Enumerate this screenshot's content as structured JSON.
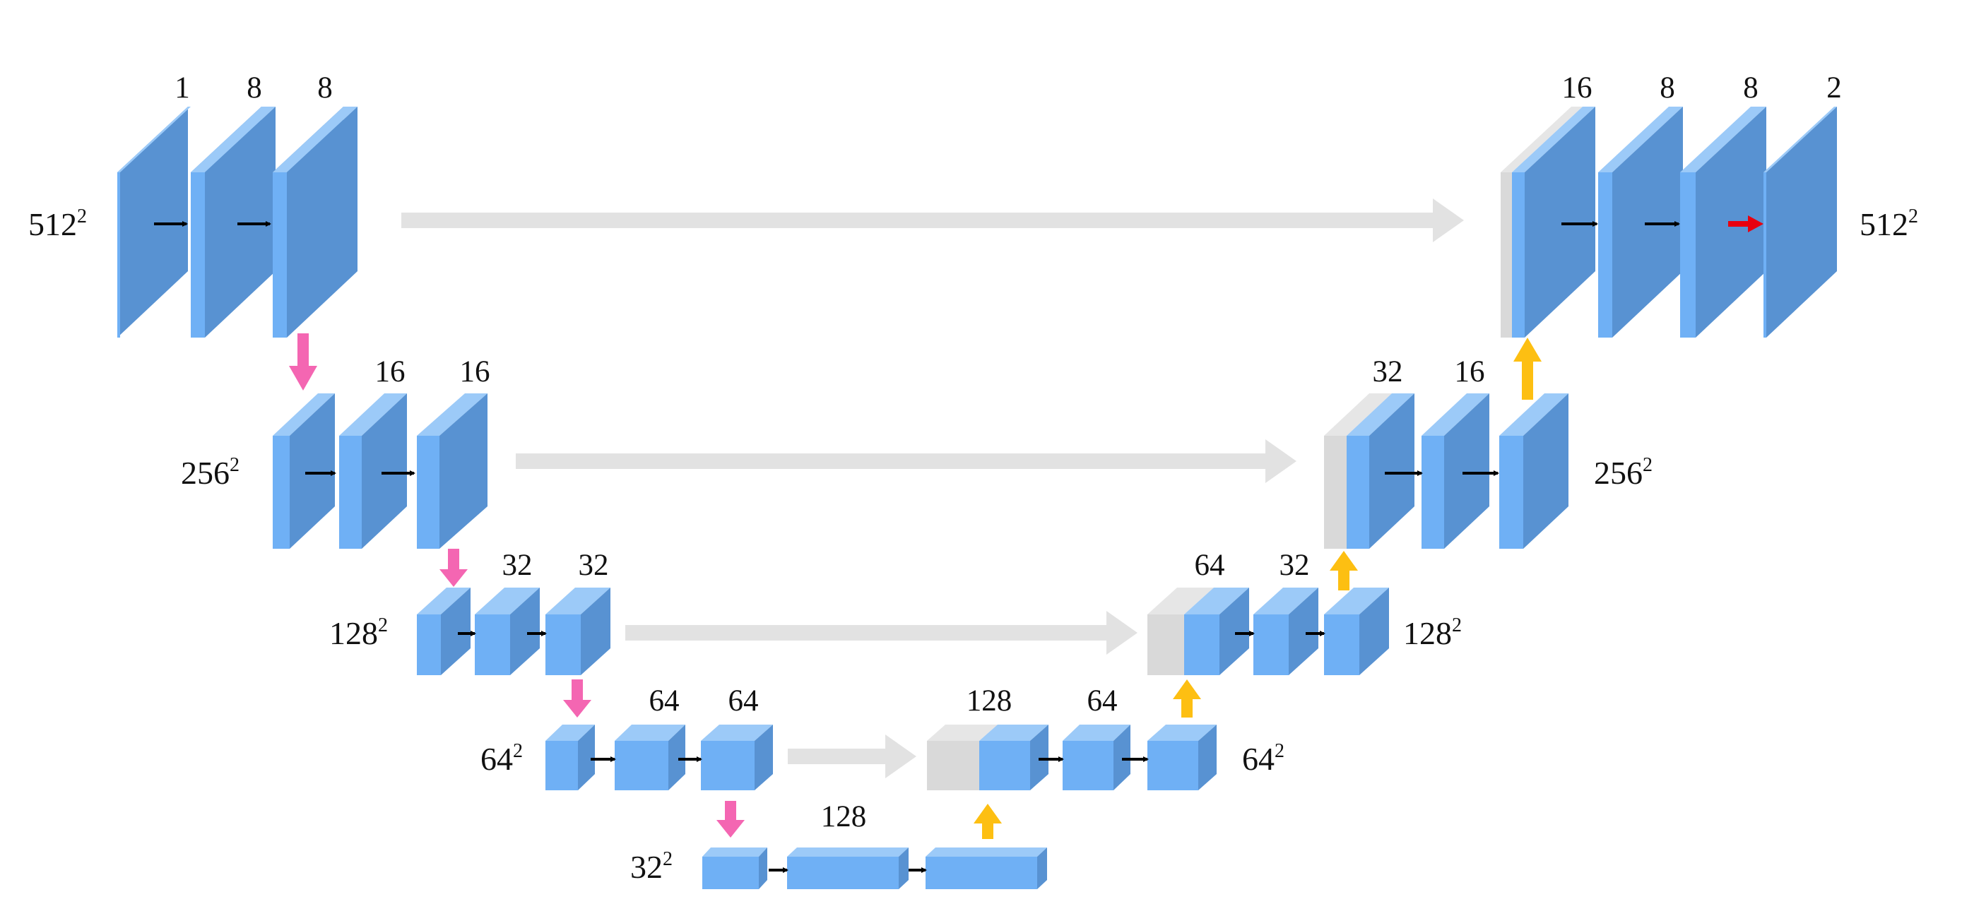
{
  "diagram": {
    "encoder": [
      {
        "resolution": "512",
        "channels": [
          "1",
          "8",
          "8"
        ]
      },
      {
        "resolution": "256",
        "channels": [
          "16",
          "16"
        ]
      },
      {
        "resolution": "128",
        "channels": [
          "32",
          "32"
        ]
      },
      {
        "resolution": "64",
        "channels": [
          "64",
          "64"
        ]
      }
    ],
    "bottleneck": {
      "resolution": "32",
      "channels": [
        "128"
      ]
    },
    "decoder": [
      {
        "resolution": "64",
        "channels": [
          "128",
          "64"
        ]
      },
      {
        "resolution": "128",
        "channels": [
          "64",
          "32"
        ]
      },
      {
        "resolution": "256",
        "channels": [
          "32",
          "16"
        ]
      },
      {
        "resolution": "512",
        "channels": [
          "16",
          "8",
          "8",
          "2"
        ]
      }
    ],
    "exponent": "2",
    "colors": {
      "block_front": "#6fb0f5",
      "block_side": "#5892d2",
      "block_top": "#9ccaf8",
      "skip_block": "#d9d9d9",
      "skip_arrow": "#e2e2e2",
      "downsample_arrow": "#f466b2",
      "upsample_arrow": "#fdbf12",
      "conv_arrow": "#000000",
      "output_arrow": "#e8000f"
    }
  }
}
